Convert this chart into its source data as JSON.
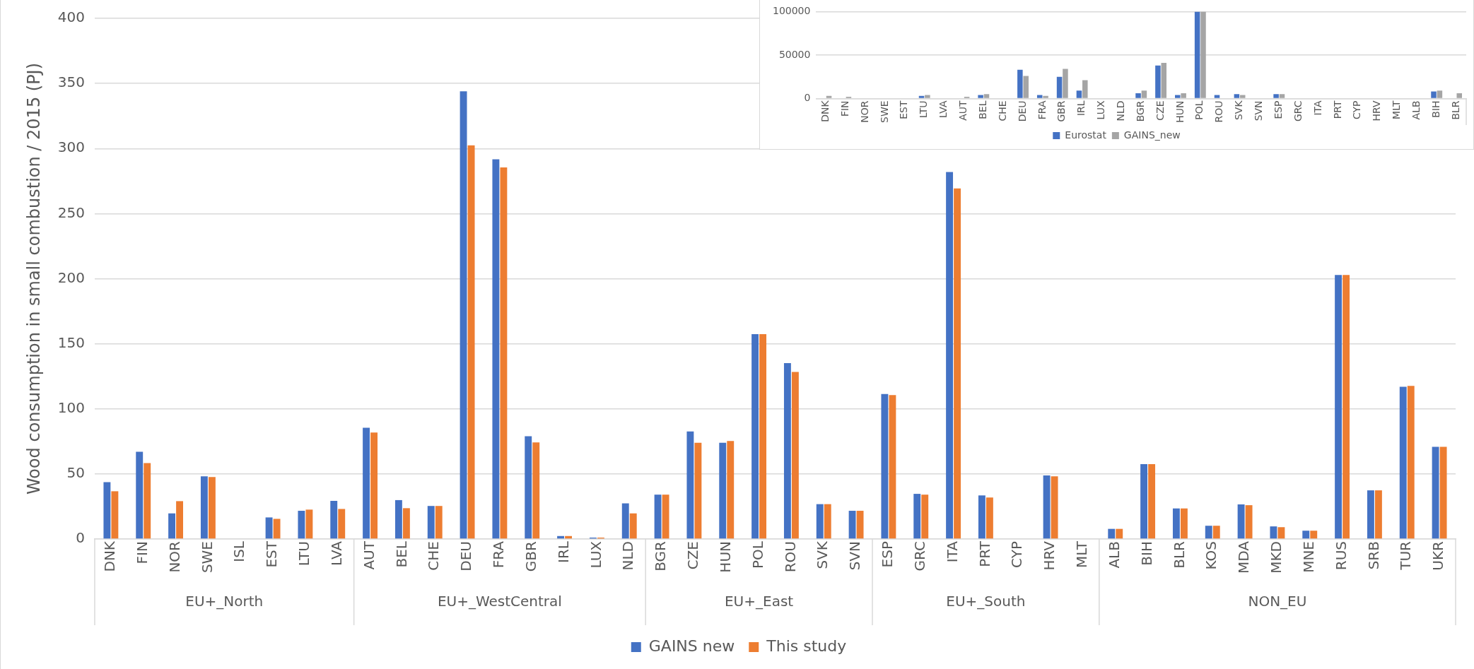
{
  "chart_data": [
    {
      "type": "bar",
      "ylabel": "Wood consumption in small combustion / 2015 (PJ)",
      "categories": [
        "DNK",
        "FIN",
        "NOR",
        "SWE",
        "ISL",
        "EST",
        "LTU",
        "LVA",
        "AUT",
        "BEL",
        "CHE",
        "DEU",
        "FRA",
        "GBR",
        "IRL",
        "LUX",
        "NLD",
        "BGR",
        "CZE",
        "HUN",
        "POL",
        "ROU",
        "SVK",
        "SVN",
        "ESP",
        "GRC",
        "ITA",
        "PRT",
        "CYP",
        "HRV",
        "MLT",
        "ALB",
        "BIH",
        "BLR",
        "KOS",
        "MDA",
        "MKD",
        "MNE",
        "RUS",
        "SRB",
        "TUR",
        "UKR"
      ],
      "series": [
        {
          "name": "GAINS new",
          "color": "#4472c4",
          "values": [
            43.7,
            67.1,
            19.7,
            48.2,
            null,
            16.6,
            21.7,
            29.3,
            85.5,
            29.9,
            25.4,
            343.9,
            291.7,
            79.0,
            2.3,
            1.1,
            27.4,
            34.1,
            82.7,
            73.9,
            157.4,
            135.1,
            26.8,
            21.7,
            111.4,
            34.7,
            282.0,
            33.5,
            null,
            48.8,
            null,
            7.8,
            57.6,
            23.5,
            10.2,
            26.6,
            9.7,
            6.4,
            202.8,
            37.4,
            116.9,
            70.9
          ]
        },
        {
          "name": "This study",
          "color": "#ed7d31",
          "values": [
            36.7,
            58.4,
            29.1,
            47.7,
            null,
            15.5,
            22.6,
            23.1,
            81.8,
            23.7,
            25.4,
            302.4,
            285.5,
            74.2,
            2.3,
            1.1,
            19.7,
            34.1,
            73.9,
            75.3,
            157.4,
            128.3,
            26.8,
            21.7,
            110.6,
            34.1,
            269.3,
            31.9,
            null,
            48.2,
            null,
            7.8,
            57.6,
            23.5,
            10.2,
            26.0,
            9.1,
            6.4,
            202.8,
            37.4,
            117.7,
            70.9
          ]
        }
      ],
      "annotations": [
        "EU+_North",
        "EU+_WestCentral",
        "EU+_East",
        "EU+_South",
        "NON_EU"
      ],
      "ylim": [
        0,
        400
      ],
      "yticks": [
        0,
        50,
        100,
        150,
        200,
        250,
        300,
        350,
        400
      ],
      "grid": "y",
      "legend": "bottom"
    },
    {
      "type": "bar",
      "categories": [
        "DNK",
        "FIN",
        "NOR",
        "SWE",
        "EST",
        "LTU",
        "LVA",
        "AUT",
        "BEL",
        "CHE",
        "DEU",
        "FRA",
        "GBR",
        "IRL",
        "LUX",
        "NLD",
        "BGR",
        "CZE",
        "HUN",
        "POL",
        "ROU",
        "SVK",
        "SVN",
        "ESP",
        "GRC",
        "ITA",
        "PRT",
        "CYP",
        "HRV",
        "MLT",
        "ALB",
        "BIH",
        "BLR"
      ],
      "series": [
        {
          "name": "Eurostat",
          "color": "#4472c4",
          "values": [
            null,
            null,
            null,
            null,
            null,
            3000,
            null,
            null,
            4000,
            null,
            33000,
            4000,
            25000,
            9000,
            null,
            null,
            6000,
            38000,
            4000,
            100000,
            4000,
            5000,
            null,
            5000,
            null,
            null,
            null,
            null,
            null,
            null,
            null,
            8000,
            null
          ]
        },
        {
          "name": "GAINS_new",
          "color": "#a5a5a5",
          "values": [
            3000,
            2000,
            null,
            null,
            null,
            4000,
            null,
            2000,
            5000,
            null,
            26000,
            3000,
            34000,
            21000,
            null,
            null,
            9000,
            41000,
            6000,
            100000,
            null,
            4000,
            null,
            5000,
            null,
            null,
            null,
            null,
            null,
            null,
            null,
            9000,
            6000
          ]
        }
      ],
      "ylim": [
        0,
        100000
      ],
      "yticks": [
        0,
        50000,
        100000
      ],
      "grid": "y",
      "legend": "bottom"
    }
  ]
}
